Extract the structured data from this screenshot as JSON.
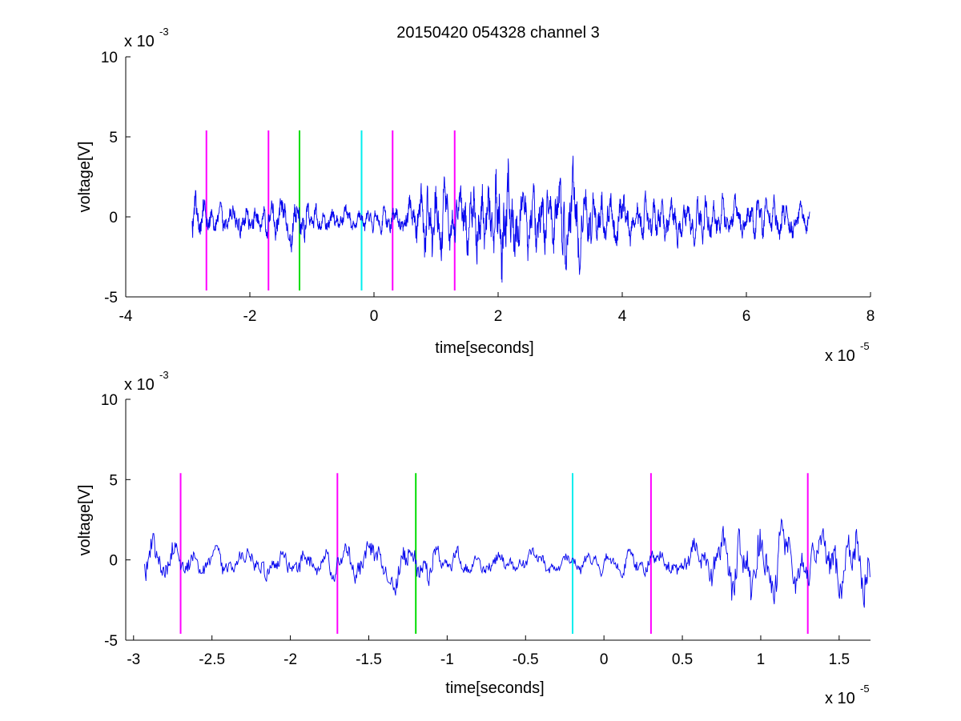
{
  "chart_data": [
    {
      "type": "line",
      "title": "20150420 054328 channel 3",
      "xlabel": "time[seconds]",
      "ylabel": "voltage[V]",
      "x_multiplier": {
        "base": "x 10",
        "exponent": "-5"
      },
      "y_multiplier": {
        "base": "x 10",
        "exponent": "-3"
      },
      "xlim": [
        -4,
        8
      ],
      "ylim": [
        -5,
        10
      ],
      "xticks": [
        "-4",
        "-2",
        "0",
        "2",
        "4",
        "6",
        "8"
      ],
      "yticks": [
        "-5",
        "0",
        "5",
        "10"
      ],
      "grid": false,
      "colors": {
        "signal": "#0000ee",
        "magenta": "#ff00ff",
        "green": "#00dd00",
        "cyan": "#00eeee"
      },
      "signal_x_range": [
        -2.93,
        7.02
      ],
      "markers": [
        {
          "x": -2.7,
          "color": "magenta",
          "ymin": -4.6,
          "ymax": 5.4
        },
        {
          "x": -1.7,
          "color": "magenta",
          "ymin": -4.6,
          "ymax": 5.4
        },
        {
          "x": -1.2,
          "color": "green",
          "ymin": -4.6,
          "ymax": 5.4
        },
        {
          "x": -0.2,
          "color": "cyan",
          "ymin": -4.6,
          "ymax": 5.4
        },
        {
          "x": 0.3,
          "color": "magenta",
          "ymin": -4.6,
          "ymax": 5.4
        },
        {
          "x": 1.3,
          "color": "magenta",
          "ymin": -4.6,
          "ymax": 5.4
        }
      ],
      "envelope": [
        [
          -2.93,
          2.2
        ],
        [
          -2.6,
          1.1
        ],
        [
          -2.0,
          1.2
        ],
        [
          -1.5,
          1.6
        ],
        [
          -1.2,
          2.2
        ],
        [
          -1.0,
          1.0
        ],
        [
          -0.5,
          0.9
        ],
        [
          0.0,
          0.8
        ],
        [
          0.5,
          1.2
        ],
        [
          0.9,
          3.3
        ],
        [
          1.3,
          2.2
        ],
        [
          1.6,
          2.8
        ],
        [
          2.0,
          4.6
        ],
        [
          2.3,
          3.0
        ],
        [
          2.7,
          2.5
        ],
        [
          3.2,
          3.6
        ],
        [
          3.6,
          2.0
        ],
        [
          4.5,
          1.5
        ],
        [
          5.5,
          1.5
        ],
        [
          6.5,
          1.4
        ],
        [
          7.02,
          1.3
        ]
      ]
    },
    {
      "type": "line",
      "title": "",
      "xlabel": "time[seconds]",
      "ylabel": "voltage[V]",
      "x_multiplier": {
        "base": "x 10",
        "exponent": "-5"
      },
      "y_multiplier": {
        "base": "x 10",
        "exponent": "-3"
      },
      "xlim": [
        -3.05,
        1.7
      ],
      "ylim": [
        -5,
        10
      ],
      "xticks": [
        "-3",
        "-2.5",
        "-2",
        "-1.5",
        "-1",
        "-0.5",
        "0",
        "0.5",
        "1",
        "1.5"
      ],
      "yticks": [
        "-5",
        "0",
        "5",
        "10"
      ],
      "grid": false,
      "colors": {
        "signal": "#0000ee",
        "magenta": "#ff00ff",
        "green": "#00dd00",
        "cyan": "#00eeee"
      },
      "signal_x_range": [
        -2.93,
        1.7
      ],
      "markers": [
        {
          "x": -2.7,
          "color": "magenta",
          "ymin": -4.6,
          "ymax": 5.4
        },
        {
          "x": -1.7,
          "color": "magenta",
          "ymin": -4.6,
          "ymax": 5.4
        },
        {
          "x": -1.2,
          "color": "green",
          "ymin": -4.6,
          "ymax": 5.4
        },
        {
          "x": -0.2,
          "color": "cyan",
          "ymin": -4.6,
          "ymax": 5.4
        },
        {
          "x": 0.3,
          "color": "magenta",
          "ymin": -4.6,
          "ymax": 5.4
        },
        {
          "x": 1.3,
          "color": "magenta",
          "ymin": -4.6,
          "ymax": 5.4
        }
      ],
      "envelope": [
        [
          -2.93,
          2.2
        ],
        [
          -2.75,
          2.5
        ],
        [
          -2.6,
          1.1
        ],
        [
          -2.0,
          1.2
        ],
        [
          -1.5,
          1.6
        ],
        [
          -1.35,
          3.3
        ],
        [
          -1.2,
          3.2
        ],
        [
          -1.0,
          1.5
        ],
        [
          -0.5,
          1.0
        ],
        [
          0.0,
          0.8
        ],
        [
          0.5,
          1.2
        ],
        [
          0.88,
          4.0
        ],
        [
          1.0,
          3.2
        ],
        [
          1.15,
          3.5
        ],
        [
          1.3,
          2.0
        ],
        [
          1.7,
          2.0
        ]
      ]
    }
  ]
}
